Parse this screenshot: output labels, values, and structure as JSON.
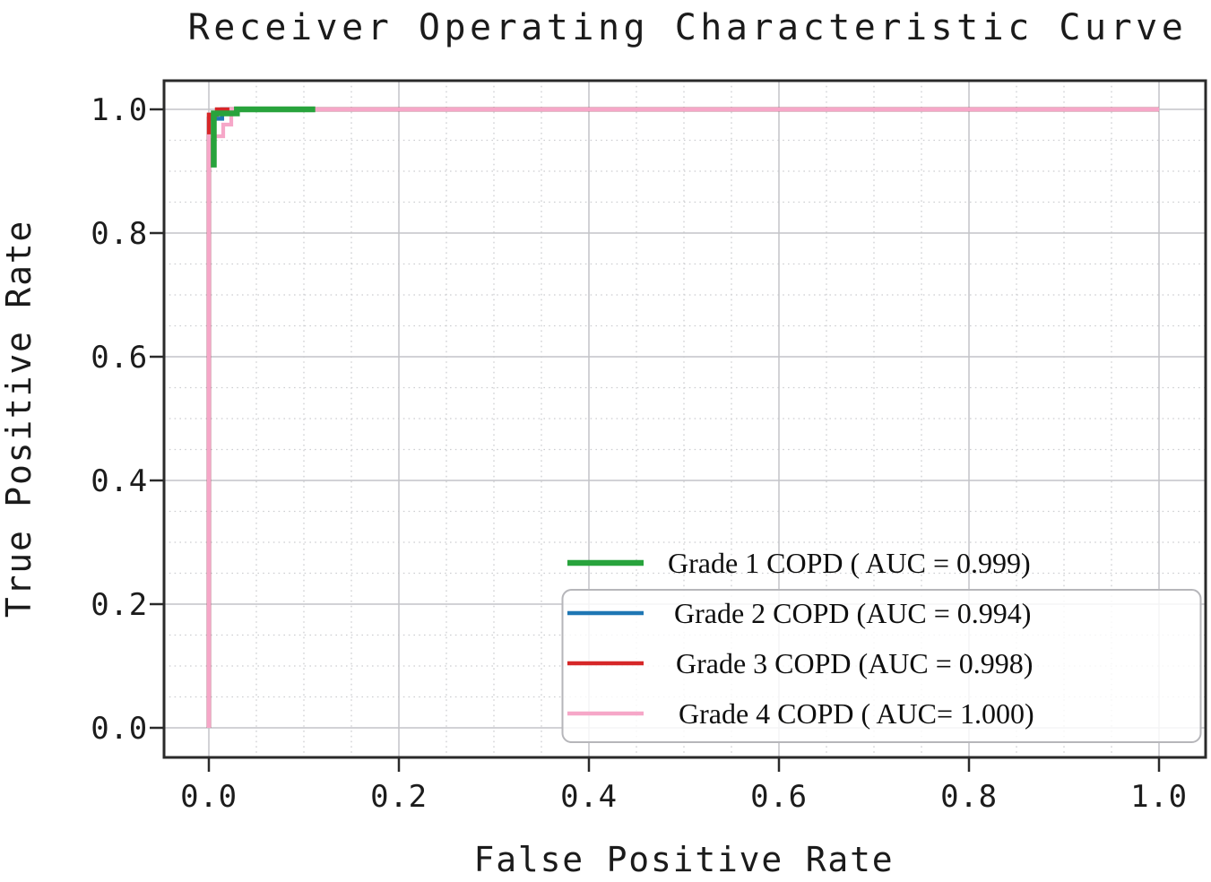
{
  "figure": {
    "title": "Receiver Operating Characteristic Curve",
    "xlabel": "False Positive Rate",
    "ylabel": "True Positive Rate"
  },
  "chart_data": {
    "type": "line",
    "title": "Receiver Operating Characteristic Curve",
    "xlabel": "False Positive Rate",
    "ylabel": "True Positive Rate",
    "xlim": [
      -0.047,
      1.049
    ],
    "ylim": [
      -0.048,
      1.046
    ],
    "x_ticks": [
      0.0,
      0.2,
      0.4,
      0.6,
      0.8,
      1.0
    ],
    "x_tick_labels": [
      "0.0",
      "0.2",
      "0.4",
      "0.6",
      "0.8",
      "1.0"
    ],
    "y_ticks": [
      0.0,
      0.2,
      0.4,
      0.6,
      0.8,
      1.0
    ],
    "y_tick_labels": [
      "0.0",
      "0.2",
      "0.4",
      "0.6",
      "0.8",
      "1.0"
    ],
    "grid": {
      "major": true,
      "minor": true,
      "minor_step": 0.05,
      "major_color": "#c3c4c8",
      "minor_color": "#cdced1"
    },
    "frame_color": "#2a2a2a",
    "legend": {
      "location": "lower right",
      "labels": [
        "Grade 1 COPD ( AUC = 0.999)",
        "Grade 2 COPD (AUC = 0.994)",
        "Grade 3 COPD (AUC = 0.998)",
        "Grade 4 COPD ( AUC= 1.000)"
      ]
    },
    "series": [
      {
        "name": "Grade 1 COPD",
        "auc": 0.999,
        "label": "Grade 1 COPD ( AUC = 0.999)",
        "color": "#28a33c",
        "linewidth": 6.5,
        "points": [
          [
            0.0052,
            0.906
          ],
          [
            0.0052,
            0.9935
          ],
          [
            0.0295,
            0.9935
          ],
          [
            0.0295,
            1.0
          ],
          [
            0.112,
            1.0
          ]
        ]
      },
      {
        "name": "Grade 2 COPD",
        "auc": 0.994,
        "label": "Grade 2 COPD (AUC = 0.994)",
        "color": "#1f77b4",
        "linewidth": 4.5,
        "points": [
          [
            0.0,
            0.0
          ],
          [
            0.0,
            0.985
          ],
          [
            0.014,
            0.985
          ],
          [
            0.014,
            1.0
          ],
          [
            1.0,
            1.0
          ]
        ]
      },
      {
        "name": "Grade 3 COPD",
        "auc": 0.998,
        "label": "Grade 3 COPD (AUC = 0.998)",
        "color": "#d62728",
        "linewidth": 4.5,
        "points": [
          [
            0.0,
            0.0
          ],
          [
            0.0,
            0.9915
          ],
          [
            0.0085,
            0.9915
          ],
          [
            0.0085,
            1.0
          ],
          [
            1.0,
            1.0
          ]
        ]
      },
      {
        "name": "Grade 4 COPD",
        "auc": 1.0,
        "label": "Grade 4 COPD ( AUC= 1.000)",
        "color": "#f6a7c8",
        "linewidth": 4.2,
        "points": [
          [
            0.0,
            0.0
          ],
          [
            0.0,
            0.9565
          ],
          [
            0.0151,
            0.9565
          ],
          [
            0.0151,
            0.9754
          ],
          [
            0.0236,
            0.9754
          ],
          [
            0.0236,
            1.0
          ],
          [
            1.0,
            1.0
          ]
        ]
      }
    ]
  }
}
